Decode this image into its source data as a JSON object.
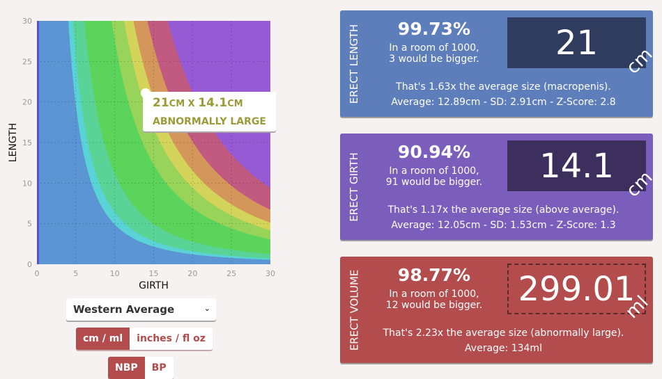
{
  "chart": {
    "type": "area",
    "xlabel": "GIRTH",
    "ylabel": "LENGTH",
    "xlim": [
      0,
      30
    ],
    "ylim": [
      0,
      30
    ],
    "ticks": [
      "0",
      "5",
      "10",
      "15",
      "20",
      "25",
      "30"
    ],
    "grid": true,
    "base_color": "#5b95d4",
    "bands": [
      {
        "volume_ml": 39,
        "color": "#5ad3d6"
      },
      {
        "volume_ml": 51,
        "color": "#5ad396"
      },
      {
        "volume_ml": 89,
        "color": "#5cd35a"
      },
      {
        "volume_ml": 220,
        "color": "#98d35a"
      },
      {
        "volume_ml": 300,
        "color": "#d4d35a"
      },
      {
        "volume_ml": 367,
        "color": "#d4965a"
      },
      {
        "volume_ml": 481,
        "color": "#c05a80"
      },
      {
        "volume_ml": 674,
        "color": "#955ad4"
      }
    ],
    "point": {
      "girth": 14.1,
      "length": 21
    }
  },
  "tooltip": {
    "length": "21",
    "girth": "14.1",
    "unit": "CM",
    "sep": " X ",
    "classification": "ABNORMALLY LARGE"
  },
  "controls": {
    "population": "Western Average",
    "units": [
      "cm / ml",
      "inches / fl oz"
    ],
    "mode": [
      "NBP",
      "BP"
    ]
  },
  "panels": [
    {
      "title": "ERECT LENGTH",
      "percent": "99.73%",
      "room1": "In a room of 1000,",
      "room2": "3 would be bigger.",
      "value": "21",
      "unit": "cm",
      "line1": "That's 1.63x the average size (macropenis).",
      "line2": "Average: 12.89cm - SD: 2.91cm - Z-Score: 2.8",
      "color": "#5e7ebb",
      "box": "#2f3c5d"
    },
    {
      "title": "ERECT GIRTH",
      "percent": "90.94%",
      "room1": "In a room of 1000,",
      "room2": "91 would be bigger.",
      "value": "14.1",
      "unit": "cm",
      "line1": "That's 1.17x the average size (above average).",
      "line2": "Average: 12.05cm - SD: 1.53cm - Z-Score: 1.3",
      "color": "#7b5ebb",
      "box": "#3d2f5d"
    },
    {
      "title": "ERECT VOLUME",
      "percent": "98.77%",
      "room1": "In a room of 1000,",
      "room2": "12 would be bigger.",
      "value": "299.01",
      "unit": "ml",
      "line1": "That's 2.23x the average size (abnormally large).",
      "line2": "Average: 134ml",
      "color": "#b34c4c",
      "box": "dashed"
    }
  ]
}
